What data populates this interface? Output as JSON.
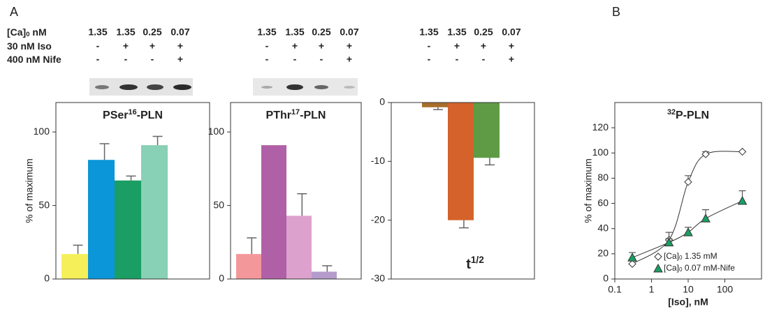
{
  "panel_labels": [
    "A",
    "B"
  ],
  "conditions": {
    "rows": [
      [
        "[Ca]",
        "0",
        " nM"
      ],
      [
        "30 nM Iso"
      ],
      [
        "400 nM Nife"
      ]
    ],
    "values": [
      [
        "1.35",
        "1.35",
        "0.25",
        "0.07"
      ],
      [
        "-",
        "+",
        "+",
        "+"
      ],
      [
        "-",
        "-",
        "-",
        "+"
      ]
    ]
  },
  "chart_data": [
    {
      "type": "bar",
      "title": [
        "PSer",
        "16",
        "-PLN"
      ],
      "ylabel": "% of maximum",
      "values": [
        17,
        81,
        67,
        91
      ],
      "errors": [
        6,
        11,
        3,
        6
      ],
      "colors": [
        "#f5ef5a",
        "#0a96d8",
        "#1a9e63",
        "#88d0b6"
      ],
      "ylim": [
        0,
        120
      ],
      "yticks": [
        0,
        50,
        100
      ]
    },
    {
      "type": "bar",
      "title": [
        "PThr",
        "17",
        "-PLN"
      ],
      "values": [
        17,
        91,
        43,
        5
      ],
      "errors": [
        11,
        null,
        15,
        4
      ],
      "colors": [
        "#f4979b",
        "#b060a6",
        "#dda1cd",
        "#b49bcc"
      ],
      "ylim": [
        0,
        120
      ],
      "yticks": [
        0,
        50,
        100
      ]
    },
    {
      "type": "bar",
      "annotation": [
        "t",
        "1/2"
      ],
      "values": [
        -0.8,
        -20,
        -9.4
      ],
      "errors": [
        0.4,
        1.3,
        1.2
      ],
      "colors": [
        "#a86d2b",
        "#d4622a",
        "#5f9b45"
      ],
      "ylim": [
        -30,
        0
      ],
      "yticks": [
        0,
        -10,
        -20,
        -30
      ]
    },
    {
      "type": "scatter",
      "title": [
        "32",
        "P-PLN"
      ],
      "xlabel": "[Iso], nM",
      "ylabel": "% of maximum",
      "xscale": "log",
      "x": [
        0.3,
        3,
        10,
        30,
        300
      ],
      "xlim": [
        0.1,
        1000
      ],
      "xticks": [
        0.1,
        1,
        10,
        100
      ],
      "ylim": [
        0,
        140
      ],
      "yticks": [
        0,
        20,
        40,
        60,
        80,
        100,
        120
      ],
      "series": [
        {
          "name": [
            "[Ca]",
            "0",
            " 1.35 mM"
          ],
          "marker": "diamond",
          "color": "#ffffff",
          "values": [
            12,
            31,
            77,
            99,
            101
          ],
          "errors": [
            null,
            6,
            5,
            2,
            null
          ]
        },
        {
          "name": [
            "[Ca]",
            "0",
            " 0.07 mM-Nife"
          ],
          "marker": "triangle",
          "color": "#1a9e63",
          "values": [
            17,
            29,
            37,
            48,
            62
          ],
          "errors": [
            4,
            3,
            4,
            7,
            8
          ]
        }
      ]
    }
  ]
}
